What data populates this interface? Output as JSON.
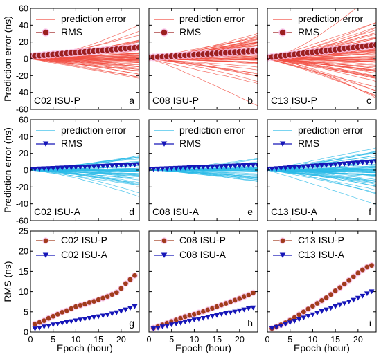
{
  "colors": {
    "err_red": "#f24f43",
    "rms_red_fill": "#9c1f1f",
    "rms_red_glow": "#f7bfe6",
    "err_blue": "#2bbbe8",
    "rms_blue": "#1616b8",
    "c_isup": "#a13b1c",
    "c_isua": "#1616b8"
  },
  "chart_data": [
    {
      "type": "line",
      "row": 0,
      "col": 0,
      "panel_label": "C02 ISU-P",
      "letter": "a",
      "ylabel": "Prediction error (ns)",
      "xlabel": "",
      "ylim": [
        -60,
        60
      ],
      "yticks": [
        -60,
        -40,
        -20,
        0,
        20,
        40,
        60
      ],
      "xlim": [
        0,
        24
      ],
      "xticks": [
        0,
        5,
        10,
        15,
        20
      ],
      "legend": [
        "prediction error",
        "RMS"
      ],
      "series": [
        {
          "name": "prediction error",
          "kind": "bundle",
          "spread_end": 25,
          "n_lines": 60
        },
        {
          "name": "RMS",
          "kind": "rms",
          "start": 3.0,
          "end": 13.5
        }
      ]
    },
    {
      "type": "line",
      "row": 0,
      "col": 1,
      "panel_label": "C08 ISU-P",
      "letter": "b",
      "ylabel": "",
      "xlabel": "",
      "ylim": [
        -60,
        60
      ],
      "yticks": [
        -60,
        -40,
        -20,
        0,
        20,
        40,
        60
      ],
      "xlim": [
        0,
        24
      ],
      "xticks": [
        0,
        5,
        10,
        15,
        20
      ],
      "legend": [
        "prediction error",
        "RMS"
      ],
      "series": [
        {
          "name": "prediction error",
          "kind": "bundle",
          "spread_end": 30,
          "n_lines": 60
        },
        {
          "name": "RMS",
          "kind": "rms",
          "start": 1.5,
          "end": 9.5
        }
      ]
    },
    {
      "type": "line",
      "row": 0,
      "col": 2,
      "panel_label": "C13 ISU-P",
      "letter": "c",
      "ylabel": "",
      "xlabel": "",
      "ylim": [
        -60,
        60
      ],
      "yticks": [
        -60,
        -40,
        -20,
        0,
        20,
        40,
        60
      ],
      "xlim": [
        0,
        24
      ],
      "xticks": [
        0,
        5,
        10,
        15,
        20
      ],
      "legend": [
        "prediction error",
        "RMS"
      ],
      "series": [
        {
          "name": "prediction error",
          "kind": "bundle",
          "spread_end": 45,
          "n_lines": 70
        },
        {
          "name": "RMS",
          "kind": "rms",
          "start": 1.5,
          "end": 16.5
        }
      ]
    },
    {
      "type": "line",
      "row": 1,
      "col": 0,
      "panel_label": "C02 ISU-A",
      "letter": "d",
      "ylabel": "Prediction error (ns)",
      "xlabel": "",
      "ylim": [
        -60,
        60
      ],
      "yticks": [
        -60,
        -40,
        -20,
        0,
        20,
        40,
        60
      ],
      "xlim": [
        0,
        24
      ],
      "xticks": [
        0,
        5,
        10,
        15,
        20
      ],
      "legend": [
        "prediction error",
        "RMS"
      ],
      "series": [
        {
          "name": "prediction error",
          "kind": "bundle",
          "spread_end": 18,
          "n_lines": 45
        },
        {
          "name": "RMS",
          "kind": "rms",
          "start": 1.0,
          "end": 6.5
        }
      ]
    },
    {
      "type": "line",
      "row": 1,
      "col": 1,
      "panel_label": "C08 ISU-A",
      "letter": "e",
      "ylabel": "",
      "xlabel": "",
      "ylim": [
        -60,
        60
      ],
      "yticks": [
        -60,
        -40,
        -20,
        0,
        20,
        40,
        60
      ],
      "xlim": [
        0,
        24
      ],
      "xticks": [
        0,
        5,
        10,
        15,
        20
      ],
      "legend": [
        "prediction error",
        "RMS"
      ],
      "series": [
        {
          "name": "prediction error",
          "kind": "bundle",
          "spread_end": 15,
          "n_lines": 45
        },
        {
          "name": "RMS",
          "kind": "rms",
          "start": 1.0,
          "end": 6.0
        }
      ]
    },
    {
      "type": "line",
      "row": 1,
      "col": 2,
      "panel_label": "C13 ISU-A",
      "letter": "f",
      "ylabel": "",
      "xlabel": "",
      "ylim": [
        -60,
        60
      ],
      "yticks": [
        -60,
        -40,
        -20,
        0,
        20,
        40,
        60
      ],
      "xlim": [
        0,
        24
      ],
      "xticks": [
        0,
        5,
        10,
        15,
        20
      ],
      "legend": [
        "prediction error",
        "RMS"
      ],
      "series": [
        {
          "name": "prediction error",
          "kind": "bundle",
          "spread_end": 28,
          "n_lines": 60
        },
        {
          "name": "RMS",
          "kind": "rms",
          "start": 1.0,
          "end": 10.0
        }
      ]
    },
    {
      "type": "scatter",
      "row": 2,
      "col": 0,
      "panel_label": "",
      "letter": "g",
      "ylabel": "RMS (ns)",
      "xlabel": "Epoch (hour)",
      "ylim": [
        0,
        25
      ],
      "yticks": [
        0,
        5,
        10,
        15,
        20,
        25
      ],
      "xlim": [
        0,
        24
      ],
      "xticks": [
        0,
        5,
        10,
        15,
        20
      ],
      "legend": [
        "C02 ISU-P",
        "C02 ISU-A"
      ],
      "series": [
        {
          "name": "C02 ISU-P",
          "marker": "circle",
          "x": [
            1,
            2,
            3,
            4,
            5,
            6,
            7,
            8,
            9,
            10,
            11,
            12,
            13,
            14,
            15,
            16,
            17,
            18,
            19,
            20,
            21,
            22,
            23
          ],
          "values": [
            2.0,
            2.4,
            2.8,
            3.4,
            3.9,
            4.4,
            4.9,
            5.3,
            5.8,
            6.3,
            6.6,
            6.9,
            7.3,
            7.6,
            8.0,
            8.4,
            8.8,
            9.3,
            9.8,
            10.8,
            12.0,
            13.0,
            14.0
          ]
        },
        {
          "name": "C02 ISU-A",
          "marker": "triangle",
          "x": [
            1,
            2,
            3,
            4,
            5,
            6,
            7,
            8,
            9,
            10,
            11,
            12,
            13,
            14,
            15,
            16,
            17,
            18,
            19,
            20,
            21,
            22,
            23
          ],
          "values": [
            0.8,
            1.0,
            1.3,
            1.5,
            1.8,
            2.0,
            2.2,
            2.4,
            2.6,
            2.8,
            3.0,
            3.2,
            3.4,
            3.6,
            3.8,
            4.0,
            4.2,
            4.5,
            4.8,
            5.1,
            5.5,
            5.9,
            6.3
          ]
        }
      ]
    },
    {
      "type": "scatter",
      "row": 2,
      "col": 1,
      "panel_label": "",
      "letter": "h",
      "ylabel": "",
      "xlabel": "Epoch (hour)",
      "ylim": [
        0,
        25
      ],
      "yticks": [
        0,
        5,
        10,
        15,
        20,
        25
      ],
      "xlim": [
        0,
        24
      ],
      "xticks": [
        0,
        5,
        10,
        15,
        20
      ],
      "legend": [
        "C08 ISU-P",
        "C08 ISU-A"
      ],
      "series": [
        {
          "name": "C08 ISU-P",
          "marker": "circle",
          "x": [
            1,
            2,
            3,
            4,
            5,
            6,
            7,
            8,
            9,
            10,
            11,
            12,
            13,
            14,
            15,
            16,
            17,
            18,
            19,
            20,
            21,
            22,
            23
          ],
          "values": [
            1.0,
            1.4,
            1.8,
            2.2,
            2.6,
            3.0,
            3.4,
            3.8,
            4.1,
            4.4,
            4.8,
            5.1,
            5.5,
            5.9,
            6.3,
            6.7,
            7.1,
            7.5,
            7.9,
            8.3,
            8.8,
            9.2,
            9.7
          ]
        },
        {
          "name": "C08 ISU-A",
          "marker": "triangle",
          "x": [
            1,
            2,
            3,
            4,
            5,
            6,
            7,
            8,
            9,
            10,
            11,
            12,
            13,
            14,
            15,
            16,
            17,
            18,
            19,
            20,
            21,
            22,
            23
          ],
          "values": [
            0.8,
            1.0,
            1.3,
            1.5,
            1.8,
            2.0,
            2.2,
            2.5,
            2.7,
            3.0,
            3.2,
            3.4,
            3.7,
            3.9,
            4.1,
            4.4,
            4.6,
            4.8,
            5.0,
            5.3,
            5.5,
            5.8,
            6.0
          ]
        }
      ]
    },
    {
      "type": "scatter",
      "row": 2,
      "col": 2,
      "panel_label": "",
      "letter": "i",
      "ylabel": "",
      "xlabel": "Epoch (hour)",
      "ylim": [
        0,
        25
      ],
      "yticks": [
        0,
        5,
        10,
        15,
        20,
        25
      ],
      "xlim": [
        0,
        24
      ],
      "xticks": [
        0,
        5,
        10,
        15,
        20
      ],
      "legend": [
        "C13 ISU-P",
        "C13 ISU-A"
      ],
      "series": [
        {
          "name": "C13 ISU-P",
          "marker": "circle",
          "x": [
            1,
            2,
            3,
            4,
            5,
            6,
            7,
            8,
            9,
            10,
            11,
            12,
            13,
            14,
            15,
            16,
            17,
            18,
            19,
            20,
            21,
            22,
            23
          ],
          "values": [
            0.9,
            1.3,
            1.8,
            2.3,
            2.9,
            3.6,
            4.3,
            5.0,
            5.7,
            6.4,
            7.1,
            7.8,
            8.5,
            9.3,
            10.2,
            11.0,
            11.9,
            12.8,
            13.7,
            14.6,
            15.4,
            16.1,
            16.5
          ]
        },
        {
          "name": "C13 ISU-A",
          "marker": "triangle",
          "x": [
            1,
            2,
            3,
            4,
            5,
            6,
            7,
            8,
            9,
            10,
            11,
            12,
            13,
            14,
            15,
            16,
            17,
            18,
            19,
            20,
            21,
            22,
            23
          ],
          "values": [
            0.9,
            1.2,
            1.5,
            1.9,
            2.3,
            2.7,
            3.1,
            3.5,
            3.9,
            4.3,
            4.7,
            5.1,
            5.5,
            5.9,
            6.3,
            6.7,
            7.1,
            7.5,
            7.9,
            8.4,
            8.9,
            9.5,
            10.0
          ]
        }
      ]
    }
  ]
}
